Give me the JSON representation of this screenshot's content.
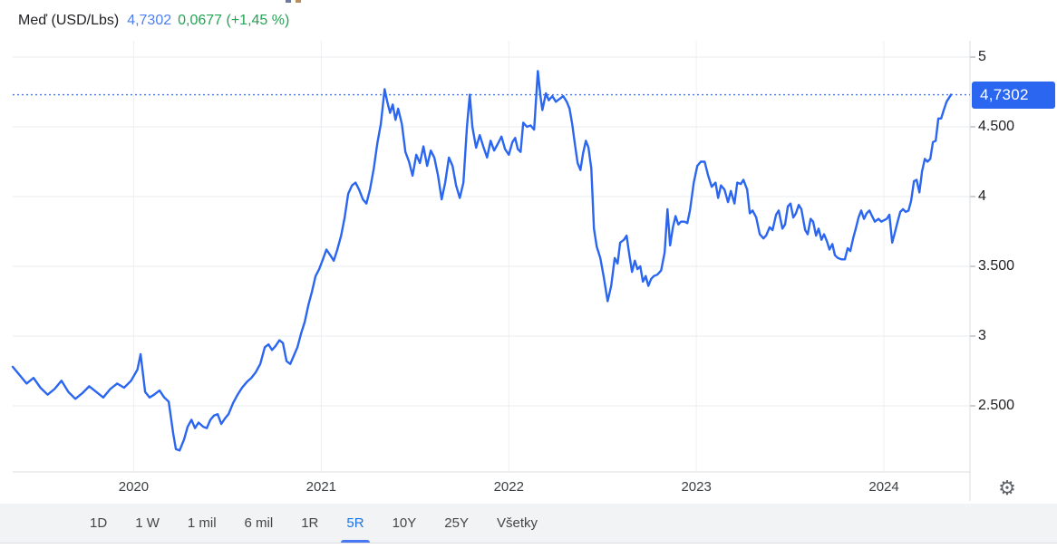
{
  "header": {
    "instrument": "Meď (USD/Lbs)",
    "price": "4,7302",
    "change": "0,0677 (+1,45 %)"
  },
  "colors": {
    "line": "#2a66f0",
    "badge_bg": "#2a66f0",
    "badge_text": "#ffffff",
    "dotted_price_line": "#4576f0",
    "grid_h": "#e9ebee",
    "grid_v": "#eef0f2",
    "axis_line": "#dadce0",
    "tick": "#9aa0a6",
    "header_price_blue": "#4d7ef2",
    "change_green": "#23a353",
    "active_tab_blue": "#1a73e8"
  },
  "icons": {
    "settings_glyph": "⚙"
  },
  "tabs": {
    "items": [
      {
        "label": "1D",
        "active": false
      },
      {
        "label": "1 W",
        "active": false
      },
      {
        "label": "1 mil",
        "active": false
      },
      {
        "label": "6 mil",
        "active": false
      },
      {
        "label": "1R",
        "active": false
      },
      {
        "label": "5R",
        "active": true
      },
      {
        "label": "10Y",
        "active": false
      },
      {
        "label": "25Y",
        "active": false
      },
      {
        "label": "Všetky",
        "active": false
      }
    ]
  },
  "chart_data": {
    "type": "line",
    "series_name": "Meď (USD/Lbs)",
    "legend_position": "none",
    "grid": true,
    "x_domain": [
      2019.355,
      2024.358
    ],
    "y_axis_range_visible": [
      2.03,
      5.07
    ],
    "last_price": 4.7302,
    "last_price_label": "4,7302",
    "y_ticks": [
      {
        "value": 5.0,
        "label": "5"
      },
      {
        "value": 4.5,
        "label": "4.500"
      },
      {
        "value": 4.0,
        "label": "4"
      },
      {
        "value": 3.5,
        "label": "3.500"
      },
      {
        "value": 3.0,
        "label": "3"
      },
      {
        "value": 2.5,
        "label": "2.500"
      }
    ],
    "x_ticks": [
      {
        "value": 2020,
        "label": "2020"
      },
      {
        "value": 2021,
        "label": "2021"
      },
      {
        "value": 2022,
        "label": "2022"
      },
      {
        "value": 2023,
        "label": "2023"
      },
      {
        "value": 2024,
        "label": "2024"
      }
    ],
    "points": [
      [
        2019.355,
        2.78
      ],
      [
        2019.392,
        2.72
      ],
      [
        2019.429,
        2.66
      ],
      [
        2019.466,
        2.7
      ],
      [
        2019.503,
        2.63
      ],
      [
        2019.541,
        2.58
      ],
      [
        2019.578,
        2.62
      ],
      [
        2019.615,
        2.68
      ],
      [
        2019.652,
        2.6
      ],
      [
        2019.689,
        2.55
      ],
      [
        2019.726,
        2.59
      ],
      [
        2019.763,
        2.64
      ],
      [
        2019.8,
        2.6
      ],
      [
        2019.838,
        2.56
      ],
      [
        2019.875,
        2.62
      ],
      [
        2019.912,
        2.66
      ],
      [
        2019.949,
        2.63
      ],
      [
        2019.986,
        2.68
      ],
      [
        2020.02,
        2.76
      ],
      [
        2020.037,
        2.87
      ],
      [
        2020.061,
        2.6
      ],
      [
        2020.085,
        2.56
      ],
      [
        2020.109,
        2.58
      ],
      [
        2020.138,
        2.61
      ],
      [
        2020.163,
        2.56
      ],
      [
        2020.187,
        2.53
      ],
      [
        2020.211,
        2.3
      ],
      [
        2020.225,
        2.19
      ],
      [
        2020.245,
        2.18
      ],
      [
        2020.269,
        2.26
      ],
      [
        2020.288,
        2.35
      ],
      [
        2020.308,
        2.4
      ],
      [
        2020.327,
        2.34
      ],
      [
        2020.346,
        2.38
      ],
      [
        2020.371,
        2.35
      ],
      [
        2020.39,
        2.34
      ],
      [
        2020.409,
        2.4
      ],
      [
        2020.428,
        2.43
      ],
      [
        2020.448,
        2.44
      ],
      [
        2020.467,
        2.37
      ],
      [
        2020.487,
        2.41
      ],
      [
        2020.506,
        2.44
      ],
      [
        2020.53,
        2.52
      ],
      [
        2020.554,
        2.58
      ],
      [
        2020.578,
        2.63
      ],
      [
        2020.603,
        2.67
      ],
      [
        2020.627,
        2.7
      ],
      [
        2020.651,
        2.74
      ],
      [
        2020.675,
        2.8
      ],
      [
        2020.699,
        2.92
      ],
      [
        2020.719,
        2.94
      ],
      [
        2020.738,
        2.9
      ],
      [
        2020.757,
        2.93
      ],
      [
        2020.777,
        2.97
      ],
      [
        2020.796,
        2.95
      ],
      [
        2020.815,
        2.82
      ],
      [
        2020.835,
        2.8
      ],
      [
        2020.854,
        2.86
      ],
      [
        2020.873,
        2.92
      ],
      [
        2020.893,
        3.02
      ],
      [
        2020.912,
        3.1
      ],
      [
        2020.931,
        3.22
      ],
      [
        2020.951,
        3.32
      ],
      [
        2020.97,
        3.43
      ],
      [
        2020.989,
        3.48
      ],
      [
        2021.009,
        3.55
      ],
      [
        2021.028,
        3.62
      ],
      [
        2021.048,
        3.58
      ],
      [
        2021.067,
        3.54
      ],
      [
        2021.086,
        3.62
      ],
      [
        2021.106,
        3.72
      ],
      [
        2021.125,
        3.85
      ],
      [
        2021.144,
        4.02
      ],
      [
        2021.164,
        4.08
      ],
      [
        2021.183,
        4.1
      ],
      [
        2021.202,
        4.05
      ],
      [
        2021.222,
        3.98
      ],
      [
        2021.241,
        3.95
      ],
      [
        2021.26,
        4.05
      ],
      [
        2021.28,
        4.2
      ],
      [
        2021.299,
        4.38
      ],
      [
        2021.318,
        4.52
      ],
      [
        2021.338,
        4.77
      ],
      [
        2021.352,
        4.68
      ],
      [
        2021.367,
        4.6
      ],
      [
        2021.381,
        4.66
      ],
      [
        2021.396,
        4.55
      ],
      [
        2021.41,
        4.63
      ],
      [
        2021.43,
        4.52
      ],
      [
        2021.449,
        4.32
      ],
      [
        2021.468,
        4.25
      ],
      [
        2021.487,
        4.15
      ],
      [
        2021.507,
        4.3
      ],
      [
        2021.526,
        4.24
      ],
      [
        2021.545,
        4.36
      ],
      [
        2021.565,
        4.22
      ],
      [
        2021.584,
        4.33
      ],
      [
        2021.603,
        4.28
      ],
      [
        2021.623,
        4.15
      ],
      [
        2021.642,
        3.98
      ],
      [
        2021.661,
        4.1
      ],
      [
        2021.681,
        4.28
      ],
      [
        2021.7,
        4.22
      ],
      [
        2021.719,
        4.08
      ],
      [
        2021.739,
        3.99
      ],
      [
        2021.758,
        4.1
      ],
      [
        2021.777,
        4.5
      ],
      [
        2021.792,
        4.73
      ],
      [
        2021.806,
        4.5
      ],
      [
        2021.826,
        4.35
      ],
      [
        2021.845,
        4.44
      ],
      [
        2021.864,
        4.36
      ],
      [
        2021.884,
        4.28
      ],
      [
        2021.903,
        4.4
      ],
      [
        2021.922,
        4.33
      ],
      [
        2021.942,
        4.38
      ],
      [
        2021.961,
        4.43
      ],
      [
        2021.98,
        4.34
      ],
      [
        2022.0,
        4.3
      ],
      [
        2022.019,
        4.39
      ],
      [
        2022.034,
        4.42
      ],
      [
        2022.048,
        4.34
      ],
      [
        2022.063,
        4.32
      ],
      [
        2022.077,
        4.53
      ],
      [
        2022.097,
        4.5
      ],
      [
        2022.116,
        4.51
      ],
      [
        2022.135,
        4.48
      ],
      [
        2022.155,
        4.9
      ],
      [
        2022.169,
        4.72
      ],
      [
        2022.179,
        4.62
      ],
      [
        2022.198,
        4.74
      ],
      [
        2022.213,
        4.69
      ],
      [
        2022.232,
        4.72
      ],
      [
        2022.251,
        4.68
      ],
      [
        2022.271,
        4.7
      ],
      [
        2022.29,
        4.72
      ],
      [
        2022.309,
        4.68
      ],
      [
        2022.324,
        4.63
      ],
      [
        2022.338,
        4.52
      ],
      [
        2022.353,
        4.37
      ],
      [
        2022.367,
        4.24
      ],
      [
        2022.382,
        4.19
      ],
      [
        2022.396,
        4.31
      ],
      [
        2022.411,
        4.4
      ],
      [
        2022.425,
        4.35
      ],
      [
        2022.44,
        4.2
      ],
      [
        2022.454,
        3.77
      ],
      [
        2022.469,
        3.64
      ],
      [
        2022.488,
        3.56
      ],
      [
        2022.507,
        3.42
      ],
      [
        2022.527,
        3.25
      ],
      [
        2022.546,
        3.36
      ],
      [
        2022.565,
        3.56
      ],
      [
        2022.58,
        3.52
      ],
      [
        2022.594,
        3.67
      ],
      [
        2022.614,
        3.69
      ],
      [
        2022.628,
        3.72
      ],
      [
        2022.643,
        3.58
      ],
      [
        2022.657,
        3.46
      ],
      [
        2022.672,
        3.54
      ],
      [
        2022.686,
        3.48
      ],
      [
        2022.701,
        3.5
      ],
      [
        2022.715,
        3.39
      ],
      [
        2022.73,
        3.43
      ],
      [
        2022.744,
        3.36
      ],
      [
        2022.759,
        3.41
      ],
      [
        2022.773,
        3.43
      ],
      [
        2022.792,
        3.44
      ],
      [
        2022.812,
        3.47
      ],
      [
        2022.831,
        3.6
      ],
      [
        2022.846,
        3.91
      ],
      [
        2022.86,
        3.65
      ],
      [
        2022.875,
        3.78
      ],
      [
        2022.889,
        3.86
      ],
      [
        2022.904,
        3.8
      ],
      [
        2022.918,
        3.82
      ],
      [
        2022.937,
        3.82
      ],
      [
        2022.952,
        3.81
      ],
      [
        2022.966,
        3.9
      ],
      [
        2022.986,
        4.1
      ],
      [
        2023.005,
        4.22
      ],
      [
        2023.024,
        4.25
      ],
      [
        2023.044,
        4.25
      ],
      [
        2023.063,
        4.15
      ],
      [
        2023.082,
        4.07
      ],
      [
        2023.102,
        4.1
      ],
      [
        2023.116,
        3.99
      ],
      [
        2023.131,
        4.08
      ],
      [
        2023.15,
        4.05
      ],
      [
        2023.169,
        3.96
      ],
      [
        2023.184,
        4.04
      ],
      [
        2023.203,
        3.95
      ],
      [
        2023.218,
        4.1
      ],
      [
        2023.237,
        4.09
      ],
      [
        2023.251,
        4.12
      ],
      [
        2023.271,
        4.05
      ],
      [
        2023.285,
        3.88
      ],
      [
        2023.3,
        3.9
      ],
      [
        2023.319,
        3.85
      ],
      [
        2023.338,
        3.73
      ],
      [
        2023.358,
        3.7
      ],
      [
        2023.372,
        3.72
      ],
      [
        2023.391,
        3.78
      ],
      [
        2023.406,
        3.76
      ],
      [
        2023.425,
        3.87
      ],
      [
        2023.439,
        3.9
      ],
      [
        2023.459,
        3.77
      ],
      [
        2023.473,
        3.8
      ],
      [
        2023.488,
        3.93
      ],
      [
        2023.502,
        3.95
      ],
      [
        2023.517,
        3.85
      ],
      [
        2023.531,
        3.88
      ],
      [
        2023.546,
        3.94
      ],
      [
        2023.56,
        3.91
      ],
      [
        2023.58,
        3.76
      ],
      [
        2023.594,
        3.73
      ],
      [
        2023.609,
        3.84
      ],
      [
        2023.623,
        3.82
      ],
      [
        2023.638,
        3.72
      ],
      [
        2023.652,
        3.77
      ],
      [
        2023.667,
        3.69
      ],
      [
        2023.681,
        3.73
      ],
      [
        2023.696,
        3.68
      ],
      [
        2023.71,
        3.62
      ],
      [
        2023.725,
        3.66
      ],
      [
        2023.739,
        3.58
      ],
      [
        2023.754,
        3.56
      ],
      [
        2023.773,
        3.55
      ],
      [
        2023.792,
        3.55
      ],
      [
        2023.807,
        3.63
      ],
      [
        2023.821,
        3.61
      ],
      [
        2023.836,
        3.7
      ],
      [
        2023.85,
        3.77
      ],
      [
        2023.865,
        3.85
      ],
      [
        2023.879,
        3.9
      ],
      [
        2023.894,
        3.84
      ],
      [
        2023.908,
        3.88
      ],
      [
        2023.923,
        3.9
      ],
      [
        2023.937,
        3.86
      ],
      [
        2023.952,
        3.82
      ],
      [
        2023.971,
        3.84
      ],
      [
        2023.986,
        3.82
      ],
      [
        2024.0,
        3.83
      ],
      [
        2024.015,
        3.84
      ],
      [
        2024.029,
        3.87
      ],
      [
        2024.044,
        3.67
      ],
      [
        2024.058,
        3.74
      ],
      [
        2024.073,
        3.82
      ],
      [
        2024.087,
        3.89
      ],
      [
        2024.102,
        3.91
      ],
      [
        2024.116,
        3.89
      ],
      [
        2024.131,
        3.9
      ],
      [
        2024.145,
        3.97
      ],
      [
        2024.16,
        4.11
      ],
      [
        2024.174,
        4.12
      ],
      [
        2024.189,
        4.03
      ],
      [
        2024.203,
        4.18
      ],
      [
        2024.218,
        4.27
      ],
      [
        2024.232,
        4.25
      ],
      [
        2024.247,
        4.27
      ],
      [
        2024.261,
        4.39
      ],
      [
        2024.276,
        4.4
      ],
      [
        2024.29,
        4.56
      ],
      [
        2024.305,
        4.56
      ],
      [
        2024.319,
        4.62
      ],
      [
        2024.334,
        4.68
      ],
      [
        2024.348,
        4.71
      ],
      [
        2024.358,
        4.7302
      ]
    ]
  }
}
